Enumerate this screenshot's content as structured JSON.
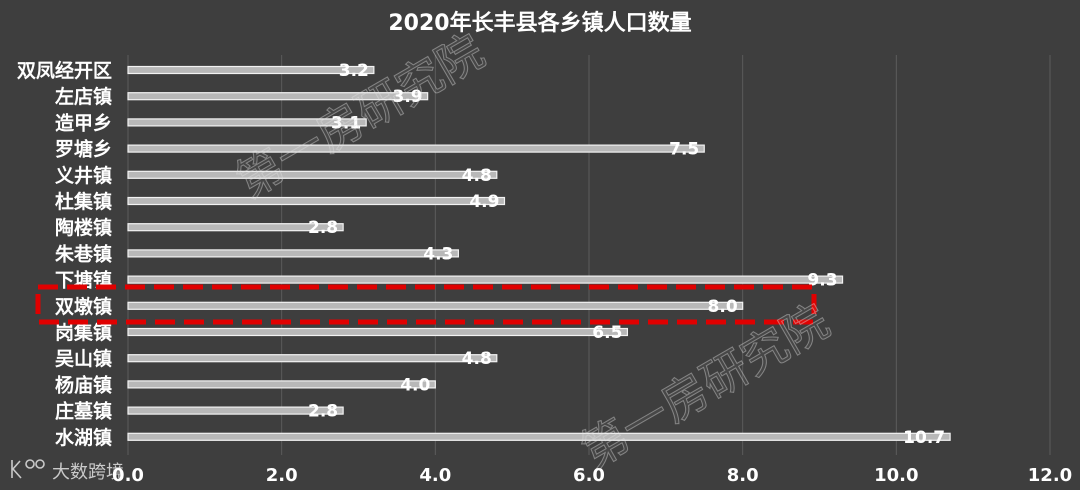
{
  "watermark": "第一房研究院",
  "logo_text": "大数跨境",
  "colors": {
    "background": "#3e3e3e",
    "bar_fill": "#b8b8b8",
    "bar_outline": "#f2f2f2",
    "text": "#ffffff",
    "gridline": "#5c5c5c",
    "highlight": "#e00000"
  },
  "chart_data": {
    "type": "bar",
    "orientation": "horizontal",
    "title": "2020年长丰县各乡镇人口数量",
    "categories": [
      "双凤经开区",
      "左店镇",
      "造甲乡",
      "罗塘乡",
      "义井镇",
      "杜集镇",
      "陶楼镇",
      "朱巷镇",
      "下塘镇",
      "双墩镇",
      "岗集镇",
      "吴山镇",
      "杨庙镇",
      "庄墓镇",
      "水湖镇"
    ],
    "values": [
      3.2,
      3.9,
      3.1,
      7.5,
      4.8,
      4.9,
      2.8,
      4.3,
      9.3,
      8.0,
      6.5,
      4.8,
      4.0,
      2.8,
      10.7
    ],
    "data_labels": [
      "3.2",
      "3.9",
      "3.1",
      "7.5",
      "4.8",
      "4.9",
      "2.8",
      "4.3",
      "9.3",
      "8.0",
      "6.5",
      "4.8",
      "4.0",
      "2.8",
      "10.7"
    ],
    "xlim": [
      0,
      12
    ],
    "xtick_labels": [
      "0.0",
      "2.0",
      "4.0",
      "6.0",
      "8.0",
      "10.0",
      "12.0"
    ],
    "grid": "vertical",
    "legend": "none"
  }
}
